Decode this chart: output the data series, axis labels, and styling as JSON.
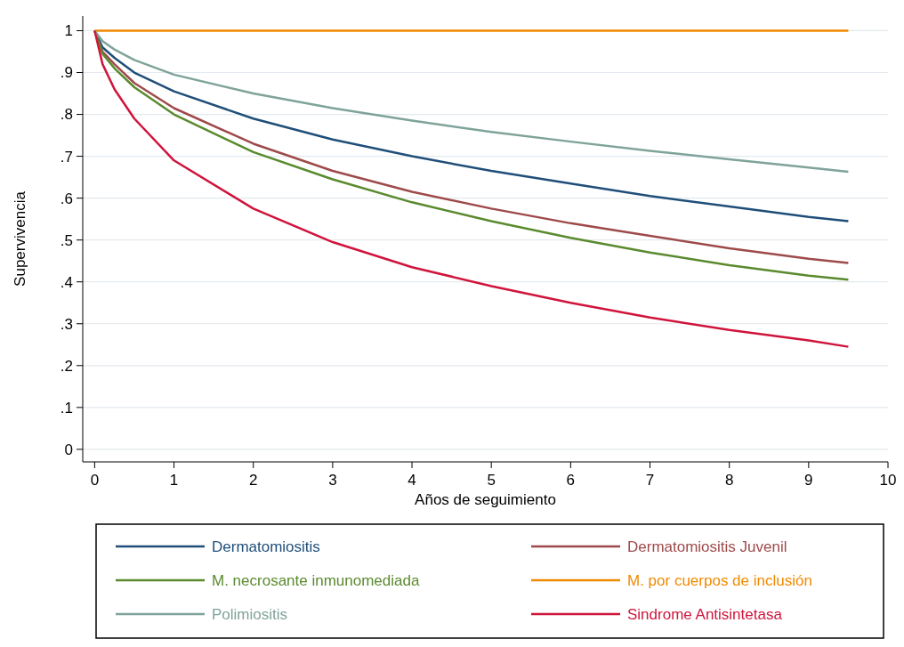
{
  "chart_data": {
    "type": "line",
    "xlabel": "Años de seguimiento",
    "ylabel": "Supervivencia",
    "x": [
      0,
      0.1,
      0.25,
      0.5,
      1,
      2,
      3,
      4,
      5,
      6,
      7,
      8,
      9,
      9.5
    ],
    "xlim": [
      -0.15,
      10
    ],
    "xticks": [
      0,
      1,
      2,
      3,
      4,
      5,
      6,
      7,
      8,
      9,
      10
    ],
    "ylim": [
      -0.03,
      1.035
    ],
    "yticks": [
      0,
      {
        "value": 0.1,
        "label": ".1"
      },
      {
        "value": 0.2,
        "label": ".2"
      },
      {
        "value": 0.3,
        "label": ".3"
      },
      {
        "value": 0.4,
        "label": ".4"
      },
      {
        "value": 0.5,
        "label": ".5"
      },
      {
        "value": 0.6,
        "label": ".6"
      },
      {
        "value": 0.7,
        "label": ".7"
      },
      {
        "value": 0.8,
        "label": ".8"
      },
      {
        "value": 0.9,
        "label": ".9"
      },
      1
    ],
    "grid": "y",
    "legend": "bottom",
    "marker": "none",
    "line_style": "solid",
    "series": [
      {
        "name": "Dermatomiositis",
        "color": "#1f4e79",
        "values": [
          1,
          0.96,
          0.935,
          0.9,
          0.855,
          0.79,
          0.74,
          0.7,
          0.665,
          0.635,
          0.605,
          0.58,
          0.555,
          0.545
        ]
      },
      {
        "name": "Dermatomiositis Juvenil",
        "color": "#9e4a4a",
        "values": [
          1,
          0.95,
          0.92,
          0.875,
          0.815,
          0.73,
          0.665,
          0.615,
          0.575,
          0.54,
          0.51,
          0.48,
          0.455,
          0.445
        ]
      },
      {
        "name": "M. necrosante inmunomediada",
        "color": "#5a8a2e",
        "values": [
          1,
          0.945,
          0.91,
          0.865,
          0.8,
          0.71,
          0.645,
          0.59,
          0.545,
          0.505,
          0.47,
          0.44,
          0.415,
          0.405
        ]
      },
      {
        "name": "M. por cuerpos de inclusión",
        "color": "#f08a00",
        "values": [
          1,
          1,
          1,
          1,
          1,
          1,
          1,
          1,
          1,
          1,
          1,
          1,
          1,
          1
        ]
      },
      {
        "name": "Polimiositis",
        "color": "#7fa39a",
        "values": [
          1,
          0.975,
          0.955,
          0.93,
          0.895,
          0.85,
          0.815,
          0.785,
          0.758,
          0.735,
          0.713,
          0.693,
          0.673,
          0.663
        ]
      },
      {
        "name": "Sindrome Antisintetasa",
        "color": "#d0143c",
        "values": [
          1,
          0.92,
          0.86,
          0.79,
          0.69,
          0.575,
          0.495,
          0.435,
          0.39,
          0.35,
          0.315,
          0.285,
          0.26,
          0.245
        ]
      }
    ]
  }
}
